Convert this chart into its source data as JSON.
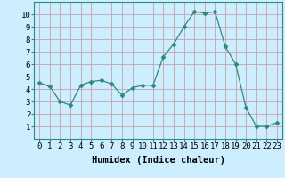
{
  "x": [
    0,
    1,
    2,
    3,
    4,
    5,
    6,
    7,
    8,
    9,
    10,
    11,
    12,
    13,
    14,
    15,
    16,
    17,
    18,
    19,
    20,
    21,
    22,
    23
  ],
  "y": [
    4.5,
    4.2,
    3.0,
    2.7,
    4.3,
    4.6,
    4.7,
    4.4,
    3.5,
    4.1,
    4.3,
    4.3,
    6.6,
    7.6,
    9.0,
    10.2,
    10.1,
    10.2,
    7.4,
    6.0,
    2.5,
    1.0,
    1.0,
    1.3
  ],
  "line_color": "#2e8b7a",
  "marker": "D",
  "marker_size": 2.5,
  "background_color": "#cceeff",
  "grid_color": "#c8a0a8",
  "xlabel": "Humidex (Indice chaleur)",
  "xlabel_fontsize": 7.5,
  "ylim": [
    0,
    11
  ],
  "xlim": [
    -0.5,
    23.5
  ],
  "yticks": [
    1,
    2,
    3,
    4,
    5,
    6,
    7,
    8,
    9,
    10
  ],
  "xticks": [
    0,
    1,
    2,
    3,
    4,
    5,
    6,
    7,
    8,
    9,
    10,
    11,
    12,
    13,
    14,
    15,
    16,
    17,
    18,
    19,
    20,
    21,
    22,
    23
  ],
  "tick_fontsize": 6.5
}
